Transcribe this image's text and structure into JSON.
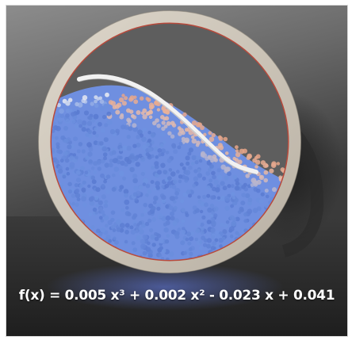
{
  "scene": {
    "formula": "f(x) = 0.005 x³ + 0.002 x² - 0.023 x + 0.041",
    "colors": {
      "background_top": "#9a9a9a",
      "background_bottom": "#3c3c3c",
      "floor": "#2a2a2a",
      "ring": "#cdc5b8",
      "ring_inner_rim": "#b84a3c",
      "particles_cool": "#6f93e0",
      "particles_warm": "#e6a487",
      "curve": "#f4f4f4"
    },
    "icons": [
      "ring-container",
      "particle-pile",
      "polynomial-curve"
    ]
  }
}
